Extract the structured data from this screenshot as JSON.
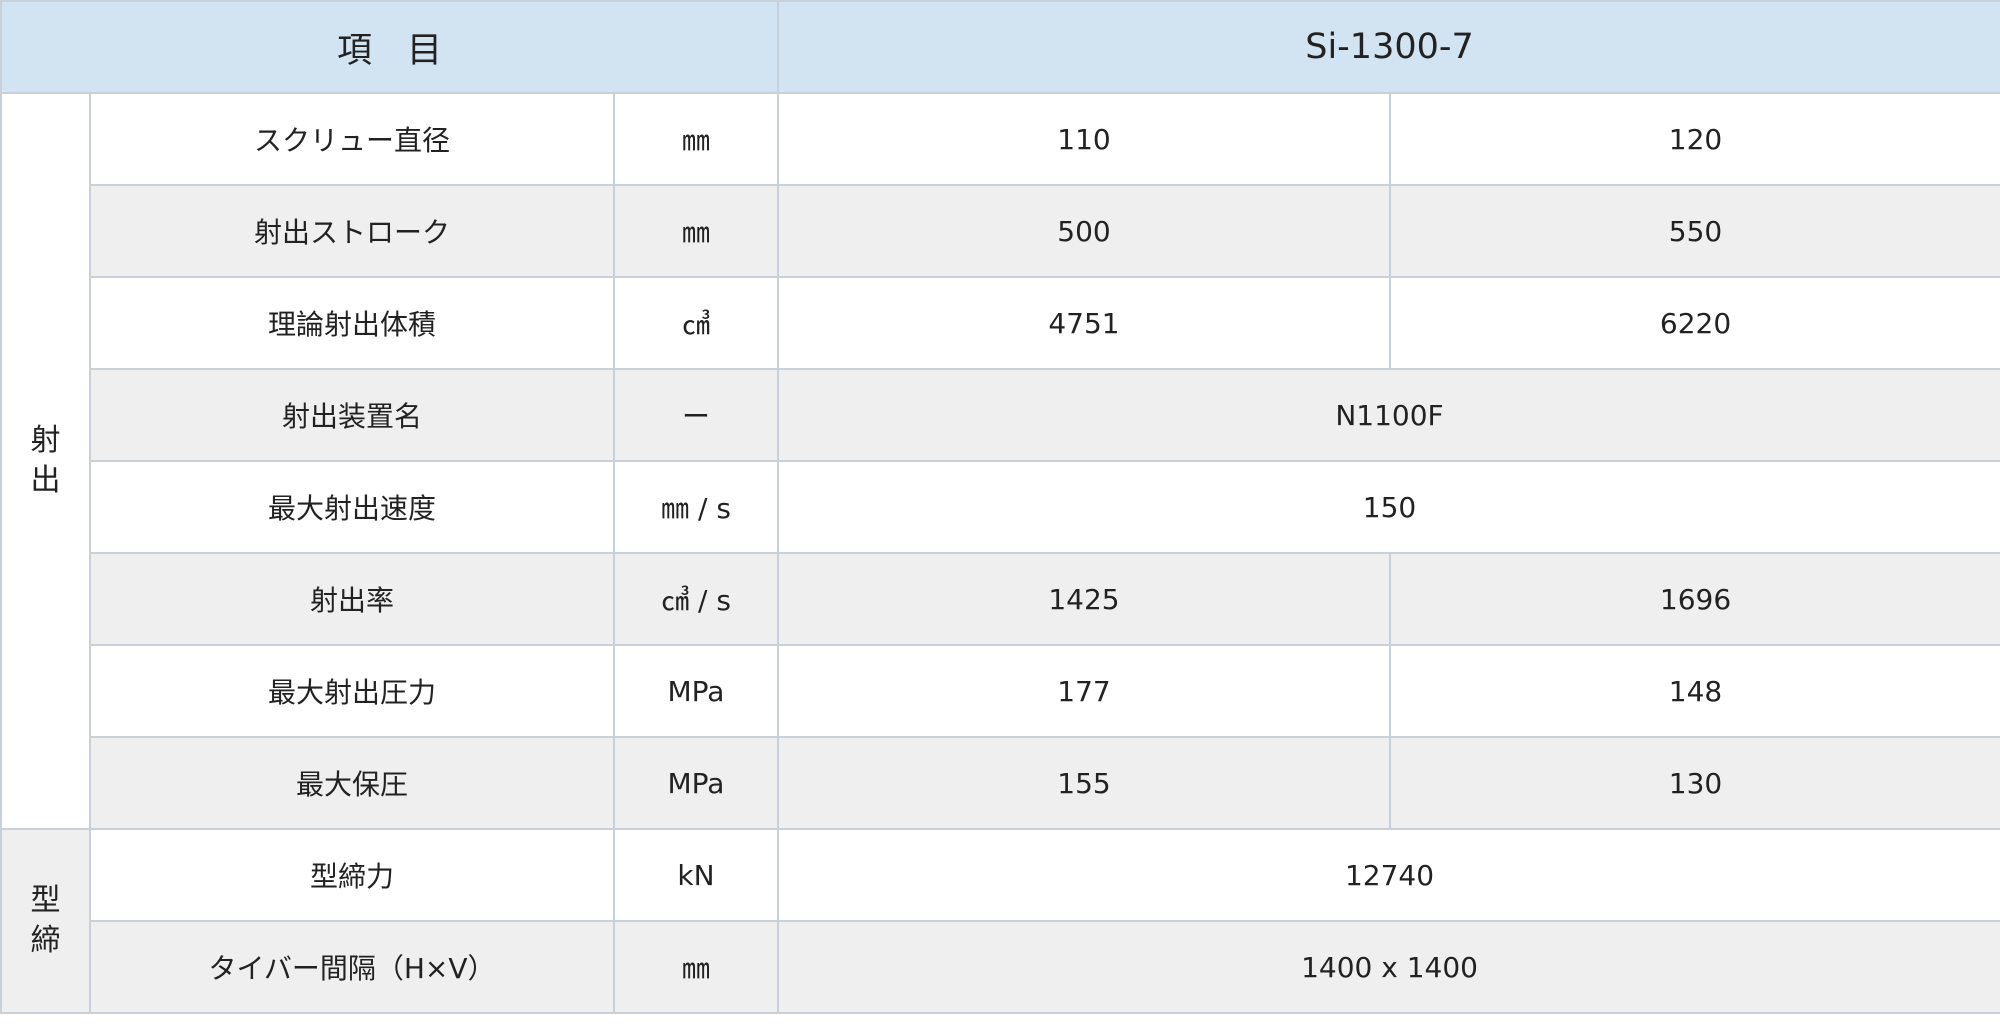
{
  "header": {
    "item": "項　目",
    "model": "Si-1300-7"
  },
  "groups": [
    {
      "label": "射\n出",
      "rows": [
        {
          "item": "スクリュー直径",
          "unit": "㎜",
          "values": [
            "110",
            "120"
          ]
        },
        {
          "item": "射出ストローク",
          "unit": "㎜",
          "values": [
            "500",
            "550"
          ]
        },
        {
          "item": "理論射出体積",
          "unit": "㎤",
          "values": [
            "4751",
            "6220"
          ]
        },
        {
          "item": "射出装置名",
          "unit": "ー",
          "values": [
            "N1100F"
          ]
        },
        {
          "item": "最大射出速度",
          "unit": "㎜ / s",
          "values": [
            "150"
          ]
        },
        {
          "item": "射出率",
          "unit": "㎤ / s",
          "values": [
            "1425",
            "1696"
          ]
        },
        {
          "item": "最大射出圧力",
          "unit": "MPa",
          "values": [
            "177",
            "148"
          ]
        },
        {
          "item": "最大保圧",
          "unit": "MPa",
          "values": [
            "155",
            "130"
          ]
        }
      ]
    },
    {
      "label": "型\n締",
      "rows": [
        {
          "item": "型締力",
          "unit": "kN",
          "values": [
            "12740"
          ]
        },
        {
          "item": "タイバー間隔（H×V）",
          "unit": "㎜",
          "values": [
            "1400 x 1400"
          ]
        }
      ]
    }
  ]
}
